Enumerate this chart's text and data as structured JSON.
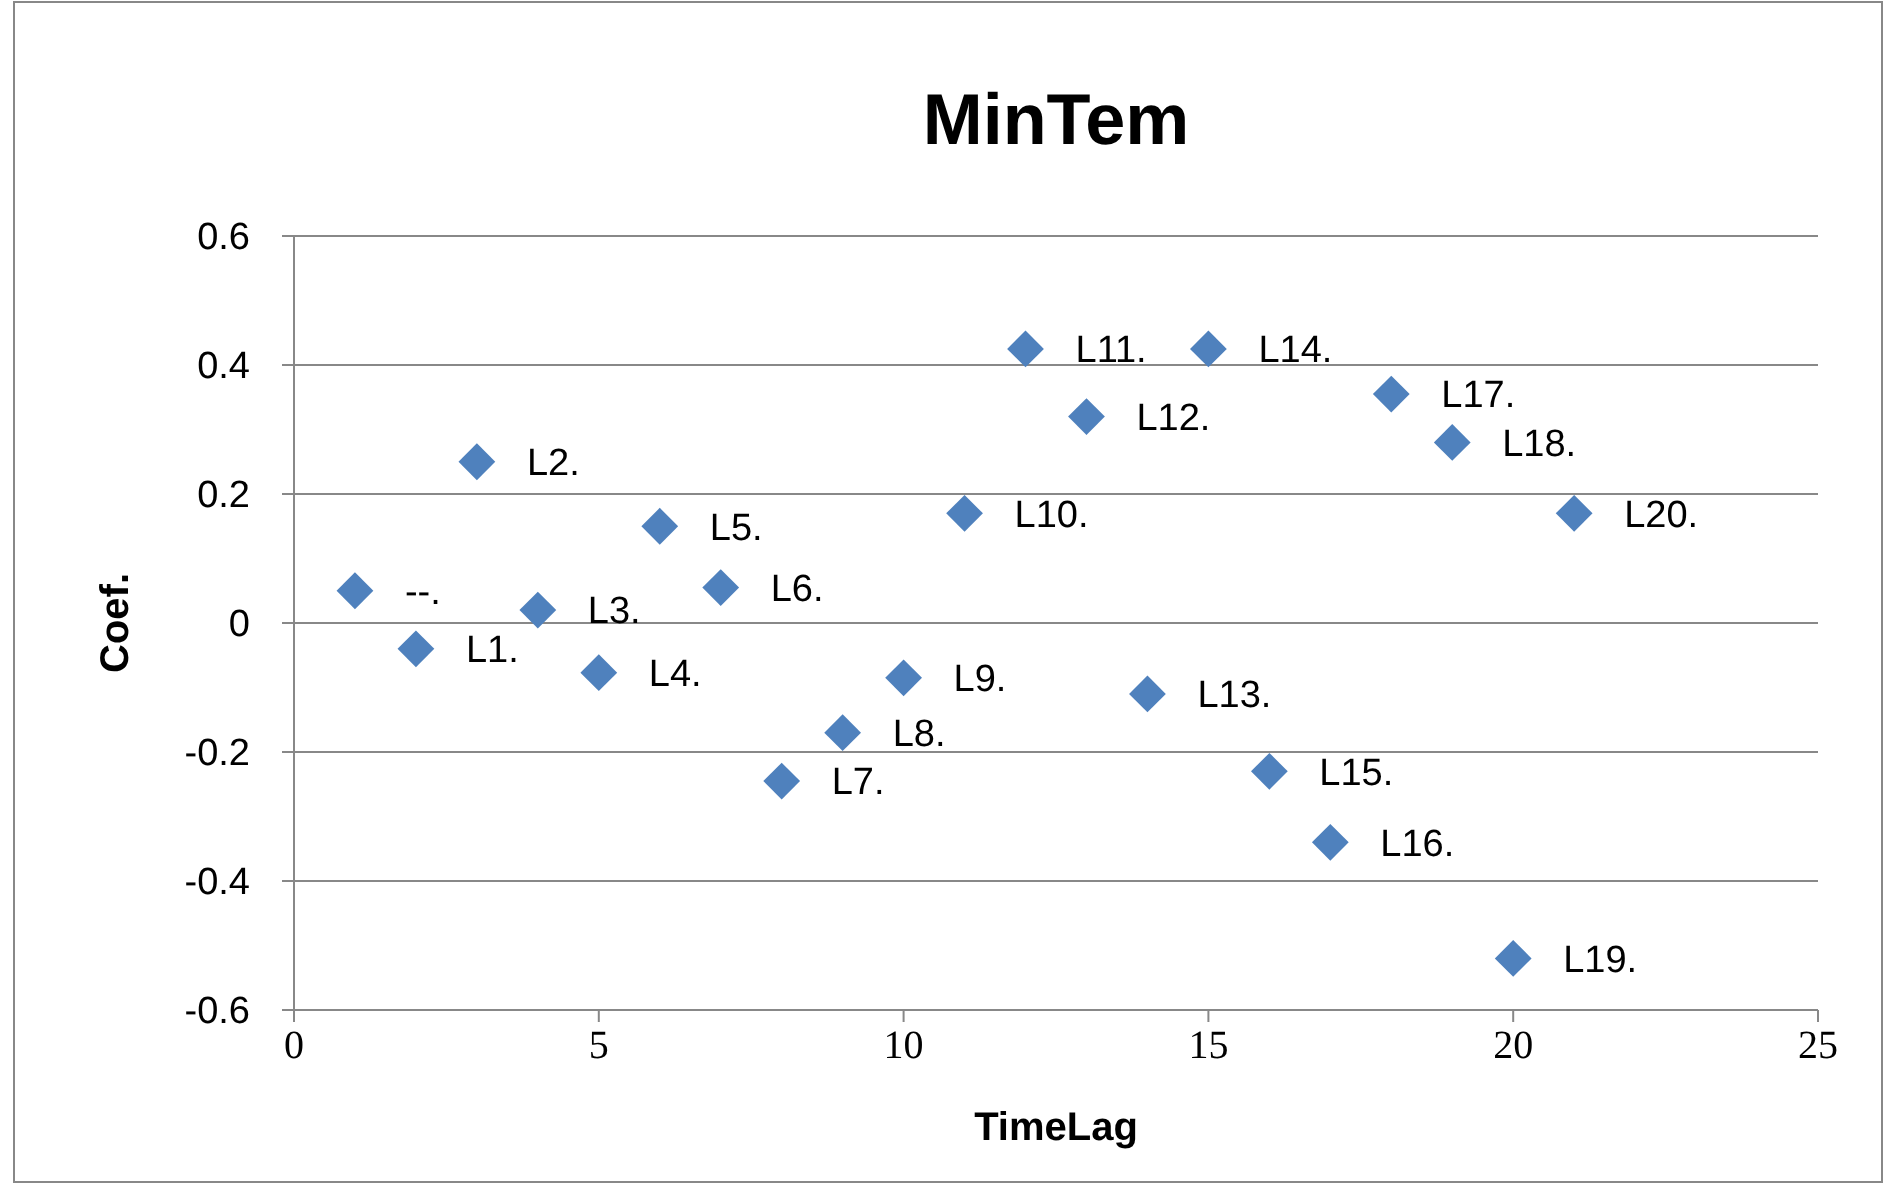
{
  "chart_data": {
    "type": "scatter",
    "title": "MinTem",
    "xlabel": "TimeLag",
    "ylabel": "Coef.",
    "marker": "diamond",
    "grid": "y",
    "legend": false,
    "xlim": [
      0,
      25
    ],
    "xticks": [
      0,
      5,
      10,
      15,
      20,
      25
    ],
    "ylim": [
      -0.6,
      0.6
    ],
    "yticks": [
      -0.6,
      -0.4,
      -0.2,
      0,
      0.2,
      0.4,
      0.6
    ],
    "series": [
      {
        "color": "#4f81bd",
        "x": [
          1,
          2,
          3,
          4,
          5,
          6,
          7,
          8,
          9,
          10,
          11,
          12,
          13,
          14,
          15,
          16,
          17,
          18,
          19,
          20,
          21
        ],
        "values": [
          0.05,
          -0.04,
          0.25,
          0.02,
          -0.077,
          0.15,
          0.055,
          -0.245,
          -0.17,
          -0.085,
          0.17,
          0.425,
          0.32,
          -0.11,
          0.425,
          -0.23,
          -0.34,
          0.355,
          0.28,
          -0.52,
          0.17
        ]
      }
    ],
    "annotations": [
      {
        "text": "--.",
        "x": 1,
        "y": 0.05
      },
      {
        "text": "L1.",
        "x": 2,
        "y": -0.04
      },
      {
        "text": "L2.",
        "x": 3,
        "y": 0.25
      },
      {
        "text": "L3.",
        "x": 4,
        "y": 0.02
      },
      {
        "text": "L4.",
        "x": 5,
        "y": -0.077
      },
      {
        "text": "L5.",
        "x": 6,
        "y": 0.15
      },
      {
        "text": "L6.",
        "x": 7,
        "y": 0.055
      },
      {
        "text": "L7.",
        "x": 8,
        "y": -0.245
      },
      {
        "text": "L8.",
        "x": 9,
        "y": -0.17
      },
      {
        "text": "L9.",
        "x": 10,
        "y": -0.085
      },
      {
        "text": "L10.",
        "x": 11,
        "y": 0.17
      },
      {
        "text": "L11.",
        "x": 12,
        "y": 0.425
      },
      {
        "text": "L12.",
        "x": 13,
        "y": 0.32
      },
      {
        "text": "L13.",
        "x": 14,
        "y": -0.11
      },
      {
        "text": "L14.",
        "x": 15,
        "y": 0.425
      },
      {
        "text": "L15.",
        "x": 16,
        "y": -0.23
      },
      {
        "text": "L16.",
        "x": 17,
        "y": -0.34
      },
      {
        "text": "L17.",
        "x": 18,
        "y": 0.355
      },
      {
        "text": "L18.",
        "x": 19,
        "y": 0.28
      },
      {
        "text": "L19.",
        "x": 20,
        "y": -0.52
      },
      {
        "text": "L20.",
        "x": 21,
        "y": 0.17
      }
    ]
  }
}
